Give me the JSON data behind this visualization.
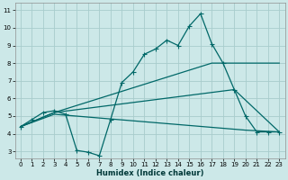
{
  "xlabel": "Humidex (Indice chaleur)",
  "bg_color": "#cce8e8",
  "grid_color": "#a8cccc",
  "line_color": "#006868",
  "xlim": [
    -0.5,
    23.5
  ],
  "ylim": [
    2.6,
    11.4
  ],
  "xticks": [
    0,
    1,
    2,
    3,
    4,
    5,
    6,
    7,
    8,
    9,
    10,
    11,
    12,
    13,
    14,
    15,
    16,
    17,
    18,
    19,
    20,
    21,
    22,
    23
  ],
  "yticks": [
    3,
    4,
    5,
    6,
    7,
    8,
    9,
    10,
    11
  ],
  "line1_x": [
    0,
    1,
    2,
    3,
    4,
    5,
    6,
    7,
    8,
    9,
    10,
    11,
    12,
    13,
    14,
    15,
    16,
    17,
    18,
    19,
    20,
    21,
    22,
    23
  ],
  "line1_y": [
    4.4,
    4.8,
    5.2,
    5.3,
    5.1,
    3.05,
    2.95,
    2.75,
    4.8,
    6.9,
    7.5,
    8.5,
    8.8,
    9.3,
    9.0,
    10.1,
    10.8,
    9.1,
    8.0,
    6.5,
    5.0,
    4.1,
    4.1,
    4.1
  ],
  "line2_x": [
    0,
    3,
    17,
    23
  ],
  "line2_y": [
    4.4,
    5.2,
    8.0,
    8.0
  ],
  "line3_x": [
    0,
    3,
    19,
    23
  ],
  "line3_y": [
    4.4,
    5.2,
    6.5,
    4.1
  ],
  "line4_x": [
    0,
    3,
    20,
    23
  ],
  "line4_y": [
    4.4,
    5.1,
    4.2,
    4.1
  ]
}
